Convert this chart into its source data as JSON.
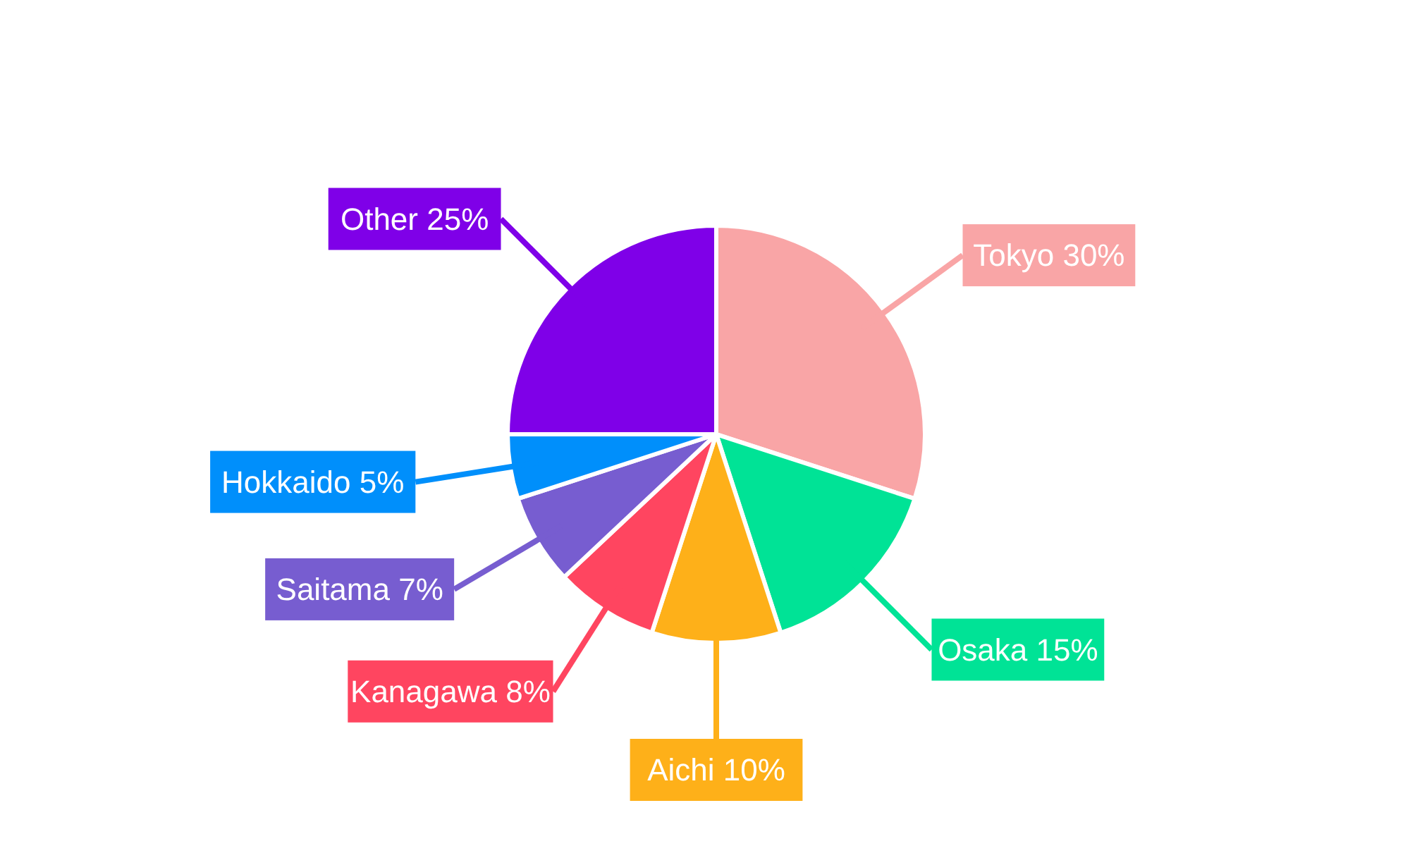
{
  "chart_data": {
    "type": "pie",
    "categories": [
      "Tokyo",
      "Osaka",
      "Aichi",
      "Kanagawa",
      "Saitama",
      "Hokkaido",
      "Other"
    ],
    "values": [
      30,
      15,
      10,
      8,
      7,
      5,
      25
    ],
    "value_labels": [
      "30%",
      "15%",
      "10%",
      "8%",
      "7%",
      "5%",
      "25%"
    ],
    "colors": [
      "#f9a5a6",
      "#00e396",
      "#feb019",
      "#ff4560",
      "#775dd0",
      "#008ffb",
      "#7f00e8"
    ]
  }
}
